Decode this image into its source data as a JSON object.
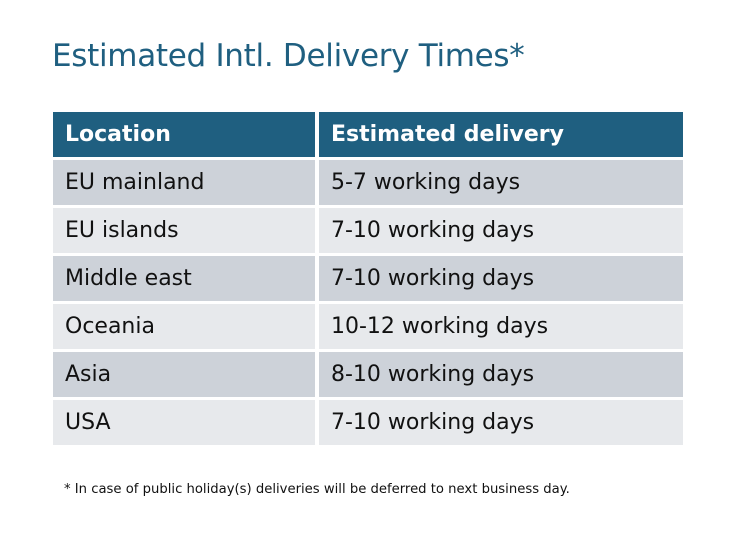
{
  "title": "Estimated Intl. Delivery Times*",
  "table": {
    "headers": [
      "Location",
      "Estimated delivery"
    ],
    "rows": [
      [
        "EU mainland",
        "5-7 working days"
      ],
      [
        "EU islands",
        "7-10 working days"
      ],
      [
        "Middle east",
        "7-10 working days"
      ],
      [
        "Oceania",
        "10-12 working days"
      ],
      [
        "Asia",
        "8-10 working days"
      ],
      [
        "USA",
        "7-10 working days"
      ]
    ]
  },
  "footnote": "* In case of public holiday(s) deliveries will be deferred to next business day.",
  "colors": {
    "header": "#1f5f80",
    "row_odd": "#cdd2d9",
    "row_even": "#e7e9ec",
    "title": "#1f5f80"
  }
}
